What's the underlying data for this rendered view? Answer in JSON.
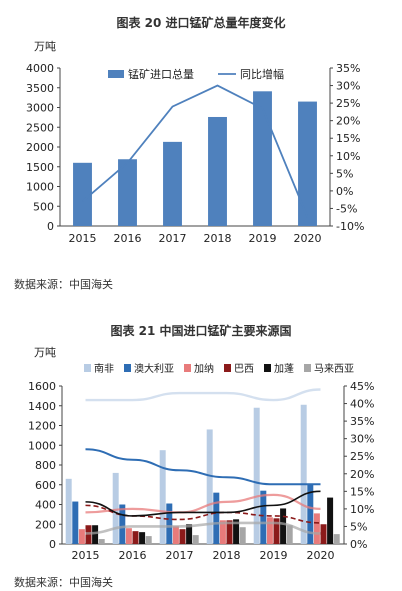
{
  "figures": [
    {
      "title": "图表 20   进口锰矿总量年度变化",
      "source": "数据来源：中国海关",
      "chart_data": {
        "type": "bar",
        "categories": [
          "2015",
          "2016",
          "2017",
          "2018",
          "2019",
          "2020"
        ],
        "ylabel": "万吨",
        "ylim": [
          0,
          4000
        ],
        "y_ticks": [
          0,
          500,
          1000,
          1500,
          2000,
          2500,
          3000,
          3500,
          4000
        ],
        "y2lim": [
          -10,
          35
        ],
        "y2_ticks": [
          "-10%",
          "-5%",
          "0%",
          "5%",
          "10%",
          "15%",
          "20%",
          "25%",
          "30%",
          "35%"
        ],
        "legend_position": "top-center",
        "series": [
          {
            "name": "锰矿进口总量",
            "type": "bar",
            "axis": "left",
            "color": "#4f81bd",
            "values": [
              1600,
              1690,
              2130,
              2760,
              3410,
              3150
            ]
          },
          {
            "name": "同比增幅",
            "type": "line",
            "axis": "right",
            "color": "#4f81bd",
            "values": [
              -3,
              8,
              24,
              30,
              23.5,
              -7.5
            ]
          }
        ]
      }
    },
    {
      "title": "图表 21   中国进口锰矿主要来源国",
      "source": "数据来源：中国海关",
      "chart_data": {
        "type": "bar",
        "categories": [
          "2015",
          "2016",
          "2017",
          "2018",
          "2019",
          "2020"
        ],
        "ylabel": "万吨",
        "ylim": [
          0,
          1600
        ],
        "y_ticks": [
          0,
          200,
          400,
          600,
          800,
          1000,
          1200,
          1400,
          1600
        ],
        "y2lim": [
          0,
          45
        ],
        "y2_ticks": [
          "0%",
          "5%",
          "10%",
          "15%",
          "20%",
          "25%",
          "30%",
          "35%",
          "40%",
          "45%"
        ],
        "legend_position": "top",
        "series": [
          {
            "name": "南非",
            "color": "#b8cce4",
            "values": [
              660,
              720,
              950,
              1160,
              1380,
              1410
            ],
            "share": [
              41,
              41,
              43,
              43,
              41,
              44
            ]
          },
          {
            "name": "澳大利亚",
            "color": "#2e6db4",
            "values": [
              430,
              400,
              410,
              520,
              540,
              610
            ],
            "share": [
              27,
              24,
              21,
              19,
              17,
              17
            ]
          },
          {
            "name": "加纳",
            "color": "#e87b7b",
            "values": [
              150,
              160,
              180,
              240,
              270,
              310
            ],
            "share": [
              9,
              10,
              9,
              12,
              14,
              10
            ]
          },
          {
            "name": "巴西",
            "color": "#8b1a1a",
            "values": [
              190,
              130,
              150,
              240,
              260,
              200
            ],
            "share": [
              11,
              8,
              7,
              9,
              8,
              6
            ]
          },
          {
            "name": "加蓬",
            "color": "#111111",
            "values": [
              190,
              120,
              200,
              250,
              360,
              470
            ],
            "share": [
              12,
              8,
              9,
              9,
              11,
              15
            ]
          },
          {
            "name": "马来西亚",
            "color": "#a6a6a6",
            "values": [
              50,
              80,
              90,
              170,
              190,
              100
            ],
            "share": [
              3,
              5,
              5,
              6,
              6,
              3
            ]
          }
        ]
      }
    }
  ]
}
